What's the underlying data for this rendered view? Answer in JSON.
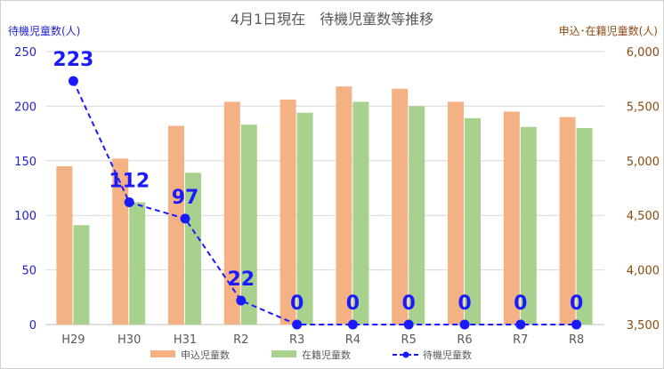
{
  "chart_data": {
    "type": "bar",
    "title": "4月1日現在　待機児童数等推移",
    "ylabel_left": "待機児童数(人)",
    "ylabel_right": "申込･在籍児童数(人)",
    "categories": [
      "H29",
      "H30",
      "H31",
      "R2",
      "R3",
      "R4",
      "R5",
      "R6",
      "R7",
      "R8"
    ],
    "y_left": {
      "min": 0,
      "max": 250,
      "ticks": [
        "0",
        "50",
        "100",
        "150",
        "200",
        "250"
      ]
    },
    "y_right": {
      "min": 3500,
      "max": 6000,
      "ticks": [
        "3,500",
        "4,000",
        "4,500",
        "5,000",
        "5,500",
        "6,000"
      ]
    },
    "series": [
      {
        "name": "申込児童数",
        "kind": "bar",
        "axis": "right",
        "color": "#f4b183",
        "values": [
          4950,
          5020,
          5320,
          5540,
          5560,
          5680,
          5660,
          5540,
          5450,
          5400
        ]
      },
      {
        "name": "在籍児童数",
        "kind": "bar",
        "axis": "right",
        "color": "#a9d18e",
        "values": [
          4410,
          4620,
          4890,
          5330,
          5440,
          5540,
          5500,
          5390,
          5310,
          5300
        ]
      },
      {
        "name": "待機児童数",
        "kind": "line",
        "axis": "left",
        "color": "#1a1aff",
        "dashed": true,
        "values": [
          223,
          112,
          97,
          22,
          0,
          0,
          0,
          0,
          0,
          0
        ],
        "labels": [
          "223",
          "112",
          "97",
          "22",
          "0",
          "0",
          "0",
          "0",
          "0",
          "0"
        ]
      }
    ],
    "grid": true,
    "legend_position": "bottom"
  }
}
